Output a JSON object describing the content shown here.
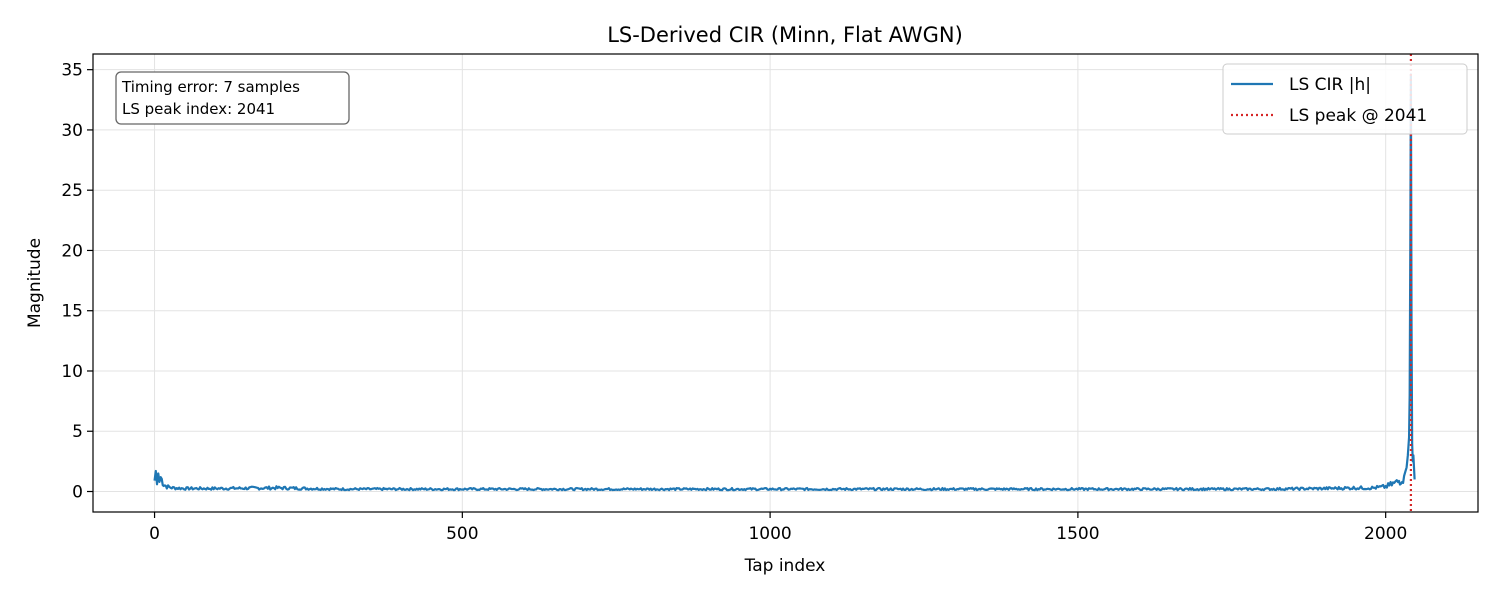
{
  "chart_data": {
    "type": "line",
    "title": "LS-Derived CIR (Minn, Flat AWGN)",
    "xlabel": "Tap index",
    "ylabel": "Magnitude",
    "xlim": [
      -100,
      2150
    ],
    "ylim": [
      -1.7,
      36.3
    ],
    "xticks": [
      0,
      500,
      1000,
      1500,
      2000
    ],
    "yticks": [
      0,
      5,
      10,
      15,
      20,
      25,
      30,
      35
    ],
    "grid": true,
    "legend_position": "top-right",
    "annotation_lines": [
      "Timing error: 7 samples",
      "LS peak index: 2041"
    ],
    "series": [
      {
        "name": "LS CIR |h|",
        "color": "#1f77b4",
        "x": [
          0,
          2,
          4,
          6,
          8,
          10,
          15,
          20,
          30,
          50,
          100,
          200,
          300,
          500,
          800,
          1000,
          1200,
          1500,
          1800,
          1900,
          1950,
          1980,
          2000,
          2010,
          2020,
          2025,
          2030,
          2034,
          2036,
          2038,
          2039,
          2040,
          2041,
          2042,
          2043,
          2044,
          2045,
          2047
        ],
        "y": [
          0.9,
          1.7,
          0.6,
          1.5,
          0.8,
          1.2,
          0.6,
          0.4,
          0.3,
          0.25,
          0.25,
          0.3,
          0.2,
          0.2,
          0.2,
          0.2,
          0.2,
          0.2,
          0.2,
          0.25,
          0.3,
          0.3,
          0.4,
          0.6,
          0.8,
          1.0,
          1.3,
          2.0,
          3.0,
          4.5,
          8.0,
          20.0,
          34.6,
          14.0,
          4.0,
          2.5,
          3.0,
          1.0
        ]
      },
      {
        "name": "LS peak @ 2041",
        "color": "#d62728",
        "style": "dotted",
        "vline_x": 2041
      }
    ]
  }
}
